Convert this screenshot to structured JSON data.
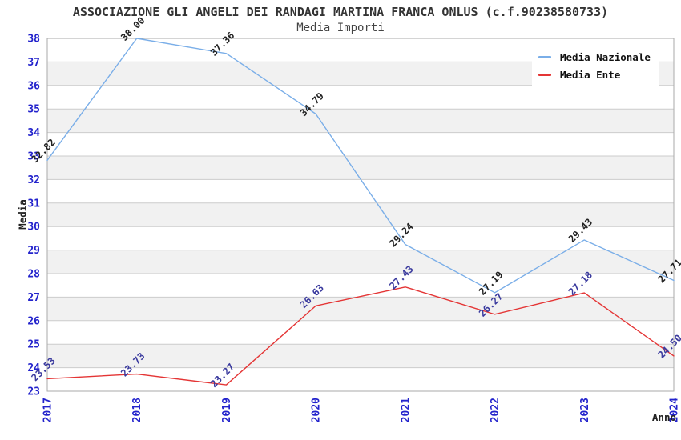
{
  "header": {
    "title": "ASSOCIAZIONE GLI ANGELI DEI RANDAGI MARTINA FRANCA ONLUS (c.f.90238580733)",
    "subtitle": "Media Importi"
  },
  "legend": {
    "items": [
      {
        "label": "Media Nazionale",
        "color": "#7AAEE8"
      },
      {
        "label": "Media Ente",
        "color": "#E43535"
      }
    ]
  },
  "chart_data": {
    "type": "line",
    "title": "ASSOCIAZIONE GLI ANGELI DEI RANDAGI MARTINA FRANCA ONLUS (c.f.90238580733)",
    "subtitle": "Media Importi",
    "xlabel": "Anno",
    "ylabel": "Media",
    "categories": [
      "2017",
      "2018",
      "2019",
      "2020",
      "2021",
      "2022",
      "2023",
      "2024"
    ],
    "series": [
      {
        "name": "Media Nazionale",
        "values": [
          32.82,
          38.0,
          37.36,
          34.79,
          29.24,
          27.19,
          29.43,
          27.71
        ],
        "color": "#7AAEE8",
        "label_color": "#222222"
      },
      {
        "name": "Media Ente",
        "values": [
          23.53,
          23.73,
          23.27,
          26.63,
          27.43,
          26.27,
          27.18,
          24.5
        ],
        "color": "#E43535",
        "label_color": "#3A3A9E"
      }
    ],
    "ylim": [
      23,
      38
    ],
    "y_tick_step": 1,
    "tick_label_color": "#2323CC",
    "grid": {
      "band_color": "#F1F1F1",
      "line_color": "#CCCCCC",
      "border_color": "#AAAAAA"
    },
    "grid_on": true,
    "legend_position": "top-right"
  }
}
